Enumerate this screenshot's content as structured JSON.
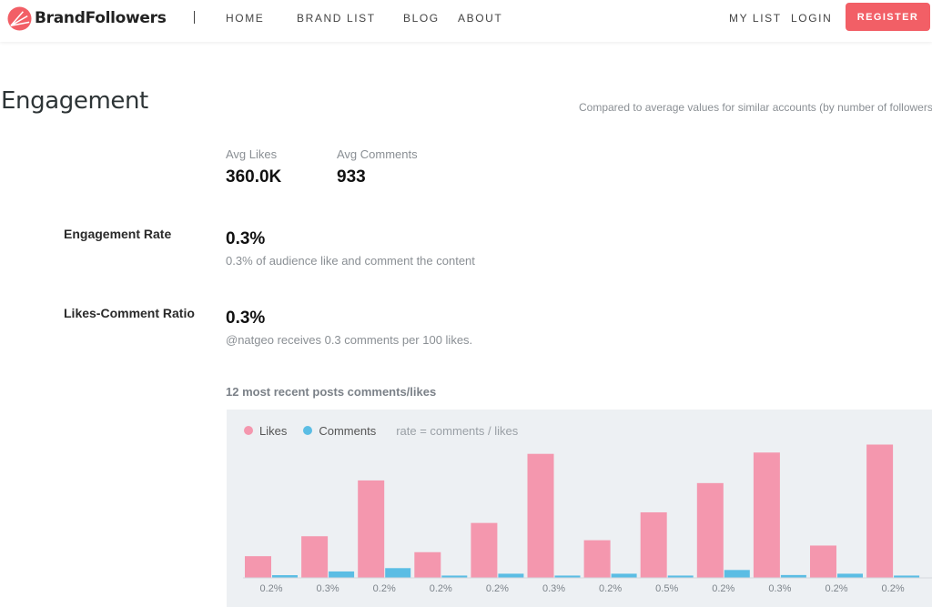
{
  "header": {
    "brand": "BrandFollowers",
    "nav": [
      "HOME",
      "BRAND LIST",
      "BLOG",
      "ABOUT"
    ],
    "my_list": "MY LIST",
    "login": "LOGIN",
    "register": "REGISTER",
    "accent_color": "#f25f66"
  },
  "engagement": {
    "title": "Engagement",
    "compare_note": "Compared to average values for similar accounts (by number of followers",
    "avg_likes_label": "Avg Likes",
    "avg_likes_value": "360.0K",
    "avg_comments_label": "Avg Comments",
    "avg_comments_value": "933",
    "rate_label": "Engagement Rate",
    "rate_value": "0.3%",
    "rate_desc": "0.3% of audience like and comment the content",
    "ratio_label": "Likes-Comment Ratio",
    "ratio_value": "0.3%",
    "ratio_desc": "@natgeo receives 0.3 comments per 100 likes."
  },
  "chart_section": {
    "title": "12 most recent posts comments/likes",
    "legend_likes": "Likes",
    "legend_comments": "Comments",
    "legend_note": "rate = comments / likes"
  },
  "chart_data": {
    "type": "bar",
    "categories": [
      "0.2%",
      "0.3%",
      "0.2%",
      "0.2%",
      "0.2%",
      "0.3%",
      "0.2%",
      "0.5%",
      "0.2%",
      "0.3%",
      "0.2%",
      "0.2%"
    ],
    "series": [
      {
        "name": "Likes",
        "color": "#f497ae",
        "values": [
          16,
          31,
          73,
          19,
          41,
          93,
          28,
          49,
          71,
          94,
          24,
          100
        ]
      },
      {
        "name": "Comments",
        "color": "#5bbde4",
        "values": [
          1.7,
          4.5,
          7,
          1.4,
          2.8,
          1.4,
          2.8,
          1.4,
          5.6,
          1.8,
          2.8,
          1.4
        ]
      }
    ],
    "ylim": [
      0,
      100
    ],
    "grid": false,
    "legend_position": "top-left"
  }
}
